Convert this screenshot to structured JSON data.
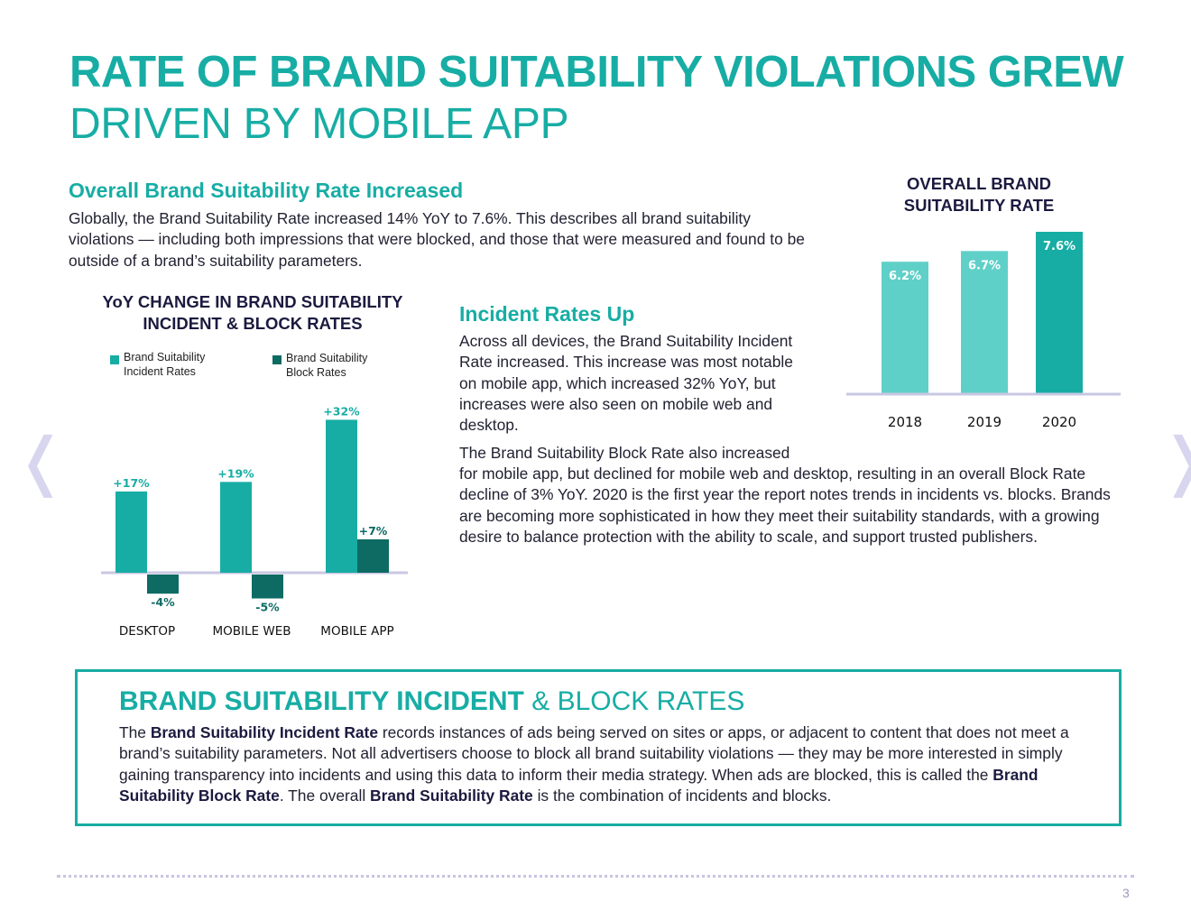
{
  "header": {
    "title_bold": "RATE OF BRAND SUITABILITY VIOLATIONS GREW",
    "title_light": "DRIVEN BY MOBILE APP"
  },
  "section1": {
    "heading": "Overall Brand Suitability Rate Increased",
    "body": "Globally, the Brand Suitability Rate increased 14% YoY to 7.6%. This describes all brand suitability violations — including both impressions that were blocked, and those that were measured and found to be outside of a brand’s suitability parameters."
  },
  "section2": {
    "heading": "Incident Rates Up",
    "para1": "Across all devices, the Brand Suitability Incident Rate increased. This increase was most notable on mobile app, which increased 32% YoY,  but increases were also seen on mobile web and desktop.",
    "para2_narrow": "The Brand Suitability Block Rate also increased",
    "para2_wide": "for mobile app, but declined for mobile web and desktop, resulting in an overall Block Rate decline of 3% YoY. 2020 is the first year the report notes trends in incidents vs. blocks. Brands are becoming more sophisticated in how they meet their suitability standards, with a growing desire to balance protection with the ability to scale, and support trusted publishers."
  },
  "colors": {
    "accent": "#17ada4",
    "light_teal": "#5fd0c8",
    "dark_teal": "#0d6b63",
    "navy": "#1b1a3f"
  },
  "chart_data": [
    {
      "type": "bar",
      "title": "YoY CHANGE IN BRAND SUITABILITY INCIDENT & BLOCK RATES",
      "title_line1": "YoY CHANGE IN BRAND SUITABILITY",
      "title_line2": "INCIDENT & BLOCK RATES",
      "categories": [
        "DESKTOP",
        "MOBILE WEB",
        "MOBILE APP"
      ],
      "series": [
        {
          "name": "Brand Suitability Incident Rates",
          "name_line1": "Brand Suitability",
          "name_line2": "Incident Rates",
          "values": [
            17,
            19,
            32
          ],
          "labels": [
            "+17%",
            "+19%",
            "+32%"
          ]
        },
        {
          "name": "Brand Suitability Block Rates",
          "name_line1": "Brand Suitability",
          "name_line2": "Block Rates",
          "values": [
            -4,
            -5,
            7
          ],
          "labels": [
            "-4%",
            "-5%",
            "+7%"
          ]
        }
      ],
      "ylim": [
        -6,
        34
      ],
      "legend": "top",
      "grid": false
    },
    {
      "type": "bar",
      "title": "OVERALL BRAND SUITABILITY RATE",
      "title_line1": "OVERALL BRAND",
      "title_line2": "SUITABILITY RATE",
      "categories": [
        "2018",
        "2019",
        "2020"
      ],
      "values": [
        6.2,
        6.7,
        7.6
      ],
      "labels": [
        "6.2%",
        "6.7%",
        "7.6%"
      ],
      "ylim": [
        0,
        7.6
      ],
      "grid": false
    }
  ],
  "definition": {
    "heading_bold": "BRAND SUITABILITY INCIDENT",
    "heading_light": " & BLOCK RATES",
    "p1": "The ",
    "b1": "Brand Suitability Incident Rate",
    "p2": " records instances of ads being served on sites or apps, or adjacent to content that does not meet a brand’s suitability parameters. Not all advertisers choose to block all brand suitability violations — they may be more interested in simply gaining transparency into incidents and using this data to inform their media strategy. When ads are blocked, this is called the ",
    "b2": "Brand Suitability Block Rate",
    "p3": ". The overall ",
    "b3": "Brand Suitability Rate",
    "p4": " is the combination of incidents and blocks."
  },
  "nav": {
    "prev_icon": "chevron-left-icon",
    "next_icon": "chevron-right-icon",
    "prev": "❬",
    "next": "❭"
  },
  "footer": {
    "page_number": "3"
  }
}
